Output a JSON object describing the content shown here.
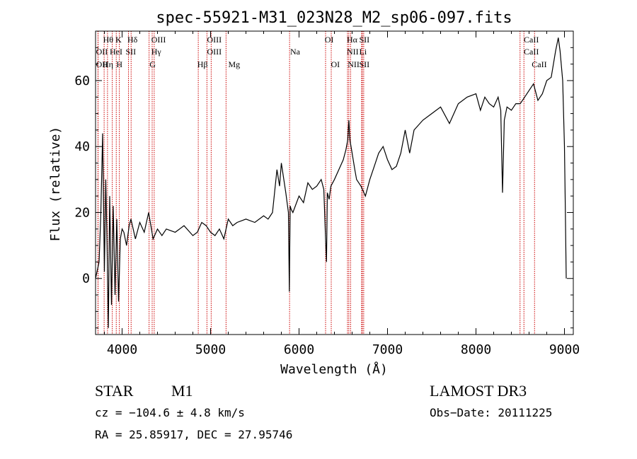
{
  "chart_data": {
    "type": "line",
    "title": "spec-55921-M31_023N28_M2_sp06-097.fits",
    "xlabel": "Wavelength (Å)",
    "ylabel": "Flux (relative)",
    "xlim": [
      3700,
      9100
    ],
    "ylim": [
      -17,
      75
    ],
    "xticks": [
      4000,
      5000,
      6000,
      7000,
      8000,
      9000
    ],
    "yticks": [
      0,
      20,
      40,
      60
    ],
    "grid": false,
    "series": [
      {
        "x": [
          3700,
          3740,
          3760,
          3780,
          3800,
          3815,
          3830,
          3845,
          3860,
          3880,
          3900,
          3920,
          3940,
          3960,
          3980,
          4000,
          4020,
          4050,
          4080,
          4100,
          4150,
          4200,
          4250,
          4300,
          4350,
          4400,
          4450,
          4500,
          4600,
          4700,
          4800,
          4850,
          4900,
          4950,
          5000,
          5050,
          5100,
          5150,
          5200,
          5250,
          5300,
          5400,
          5500,
          5600,
          5650,
          5700,
          5750,
          5780,
          5800,
          5850,
          5880,
          5890,
          5900,
          5910,
          5930,
          6000,
          6050,
          6100,
          6150,
          6200,
          6250,
          6280,
          6300,
          6310,
          6320,
          6340,
          6360,
          6400,
          6450,
          6500,
          6530,
          6550,
          6563,
          6575,
          6600,
          6630,
          6650,
          6700,
          6750,
          6800,
          6850,
          6900,
          6950,
          7000,
          7050,
          7100,
          7150,
          7200,
          7250,
          7300,
          7400,
          7500,
          7600,
          7700,
          7800,
          7900,
          8000,
          8050,
          8100,
          8150,
          8200,
          8250,
          8280,
          8300,
          8320,
          8350,
          8400,
          8450,
          8500,
          8550,
          8600,
          8650,
          8700,
          8750,
          8800,
          8850,
          8900,
          8930,
          8950,
          8980,
          9000,
          9010,
          9020
        ],
        "values": [
          0,
          5,
          20,
          44,
          2,
          30,
          10,
          -15,
          25,
          -8,
          22,
          -5,
          18,
          -7,
          12,
          15,
          14,
          10,
          16,
          18,
          12,
          17,
          14,
          20,
          12,
          15,
          13,
          15,
          14,
          16,
          13,
          14,
          17,
          16,
          14,
          13,
          15,
          12,
          18,
          16,
          17,
          18,
          17,
          19,
          18,
          20,
          33,
          28,
          35,
          26,
          20,
          -4,
          22,
          21,
          20,
          25,
          23,
          29,
          27,
          28,
          30,
          27,
          12,
          5,
          26,
          24,
          28,
          30,
          33,
          36,
          39,
          42,
          48,
          42,
          38,
          33,
          30,
          28,
          25,
          30,
          34,
          38,
          40,
          36,
          33,
          34,
          38,
          45,
          38,
          45,
          48,
          50,
          52,
          47,
          53,
          55,
          56,
          51,
          55,
          53,
          52,
          55,
          51,
          26,
          48,
          52,
          51,
          53,
          53,
          55,
          57,
          59,
          54,
          56,
          60,
          61,
          69,
          73,
          69,
          60,
          40,
          20,
          0
        ]
      }
    ],
    "lines": [
      {
        "name": "Hθ",
        "x": 3797,
        "row": 0,
        "label_x": 3785
      },
      {
        "name": "K",
        "x": 3934,
        "row": 0,
        "label_x": 3925
      },
      {
        "name": "Hδ",
        "x": 4102,
        "row": 0,
        "label_x": 4060
      },
      {
        "name": "OIII",
        "x": 4363,
        "row": 0,
        "label_x": 4330
      },
      {
        "name": "OIII",
        "x": 4959,
        "row": 0,
        "label_x": 4960
      },
      {
        "name": "OI",
        "x": 6300,
        "row": 0,
        "label_x": 6290
      },
      {
        "name": "Hα",
        "x": 6563,
        "row": 0,
        "label_x": 6540
      },
      {
        "name": "SII",
        "x": 6716,
        "row": 0,
        "label_x": 6680
      },
      {
        "name": "CaII",
        "x": 8498,
        "row": 0,
        "label_x": 8540
      },
      {
        "name": "OII",
        "x": 3727,
        "row": 1,
        "label_x": 3705
      },
      {
        "name": "HeI",
        "x": 3889,
        "row": 1,
        "label_x": 3860
      },
      {
        "name": "SII",
        "x": 4072,
        "row": 1,
        "label_x": 4040
      },
      {
        "name": "Hγ",
        "x": 4340,
        "row": 1,
        "label_x": 4330
      },
      {
        "name": "OIII",
        "x": 5007,
        "row": 1,
        "label_x": 4960
      },
      {
        "name": "Na",
        "x": 5893,
        "row": 1,
        "label_x": 5900
      },
      {
        "name": "NII",
        "x": 6583,
        "row": 1,
        "label_x": 6540
      },
      {
        "name": "Li",
        "x": 6707,
        "row": 1,
        "label_x": 6680
      },
      {
        "name": "CaII",
        "x": 8542,
        "row": 1,
        "label_x": 8540
      },
      {
        "name": "OII",
        "x": 3729,
        "row": 2,
        "label_x": 3705
      },
      {
        "name": "Hη",
        "x": 3835,
        "row": 2,
        "label_x": 3780
      },
      {
        "name": "H",
        "x": 3969,
        "row": 2,
        "label_x": 3935
      },
      {
        "name": "G",
        "x": 4305,
        "row": 2,
        "label_x": 4310
      },
      {
        "name": "Hβ",
        "x": 4861,
        "row": 2,
        "label_x": 4850
      },
      {
        "name": "Mg",
        "x": 5175,
        "row": 2,
        "label_x": 5200
      },
      {
        "name": "OI",
        "x": 6364,
        "row": 2,
        "label_x": 6360
      },
      {
        "name": "NII",
        "x": 6548,
        "row": 2,
        "label_x": 6550
      },
      {
        "name": "SII",
        "x": 6731,
        "row": 2,
        "label_x": 6680
      },
      {
        "name": "CaII",
        "x": 8662,
        "row": 2,
        "label_x": 8630
      }
    ],
    "line_color": "#cc0000"
  },
  "info": {
    "object_class": "STAR",
    "subclass": "M1",
    "survey": "LAMOST DR3",
    "cz": "cz = −104.6 ± 4.8 km/s",
    "obs_date": "Obs−Date: 20111225",
    "coords": "RA =  25.85917, DEC =  27.95746"
  }
}
